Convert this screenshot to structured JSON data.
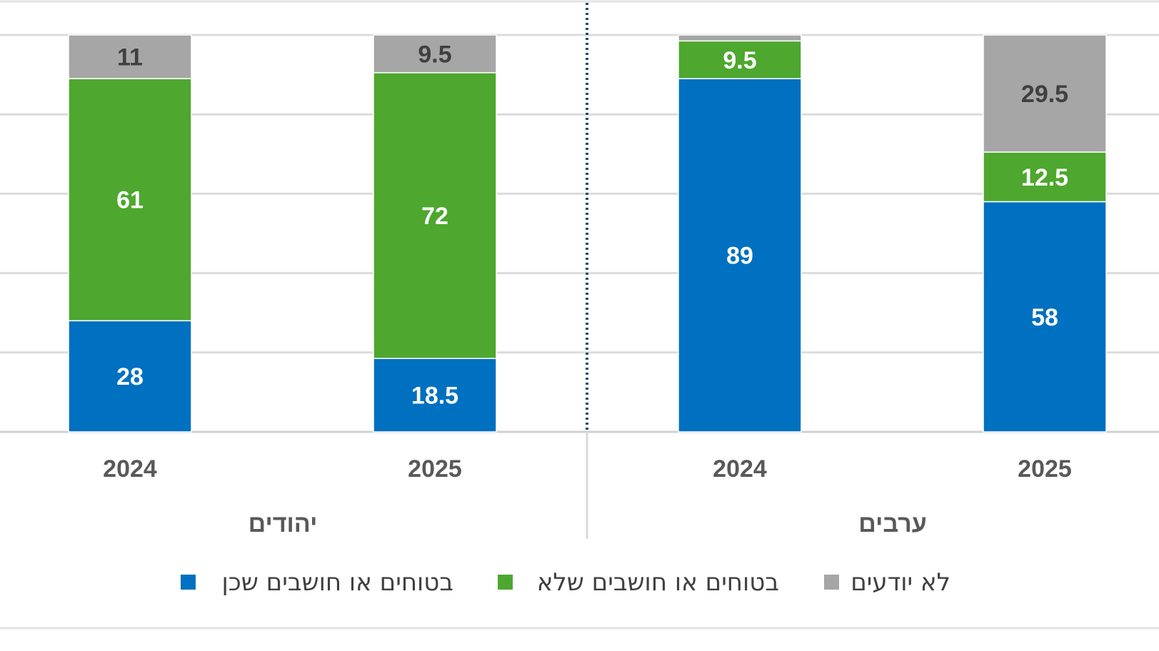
{
  "chart_data": {
    "type": "bar",
    "stacked": true,
    "ylim": [
      0,
      100
    ],
    "grid": true,
    "legend_placement": "bottom",
    "groups": [
      {
        "label": "יהודים",
        "categories": [
          "2024",
          "2025"
        ]
      },
      {
        "label": "ערבים",
        "categories": [
          "2024",
          "2025"
        ]
      }
    ],
    "series": [
      {
        "name": "בטוחים או חושבים שכן",
        "color": "#0070C0",
        "values": [
          28,
          18.5,
          89,
          58
        ]
      },
      {
        "name": "בטוחים או חושבים שלא",
        "color": "#4EA72E",
        "values": [
          61,
          72,
          9.5,
          12.5
        ]
      },
      {
        "name": "לא יודעים",
        "color": "#A6A6A6",
        "values": [
          11,
          9.5,
          1.5,
          29.5
        ]
      }
    ],
    "data_labels": [
      [
        "28",
        "18.5",
        "89",
        "58"
      ],
      [
        "61",
        "72",
        "9.5",
        "12.5"
      ],
      [
        "11",
        "9.5",
        "",
        "29.5"
      ]
    ],
    "label_colors": [
      "#ffffff",
      "#ffffff",
      "#404040"
    ]
  }
}
